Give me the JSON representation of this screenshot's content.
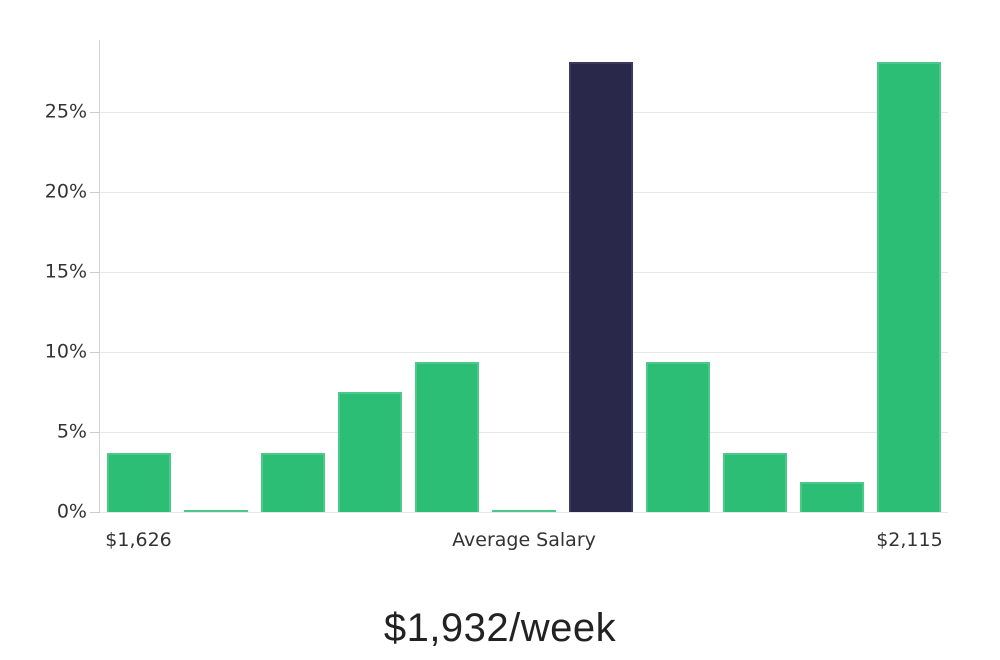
{
  "chart_data": {
    "type": "bar",
    "title": "$1,932/week",
    "values": [
      3.7,
      0.1,
      3.7,
      7.5,
      9.4,
      0.1,
      28.1,
      9.4,
      3.7,
      1.9,
      28.1
    ],
    "highlight_index": 6,
    "y_ticks": [
      0,
      5,
      10,
      15,
      20,
      25
    ],
    "y_tick_suffix": "%",
    "ylim": [
      0,
      29.5
    ],
    "x_tick_labels": [
      {
        "index": 0,
        "label": "$1,626"
      },
      {
        "index": 5,
        "label": "Average Salary"
      },
      {
        "index": 10,
        "label": "$2,115"
      }
    ],
    "grid": true,
    "legend": "none",
    "colors": {
      "bar": "#2dbe75",
      "bar_edge": "#4cc88a",
      "highlight": "#29284a",
      "highlight_edge": "#3a3960",
      "gridline": "#e7e7e7",
      "tick": "#cccccc",
      "label": "#333333",
      "title": "#222222"
    }
  }
}
